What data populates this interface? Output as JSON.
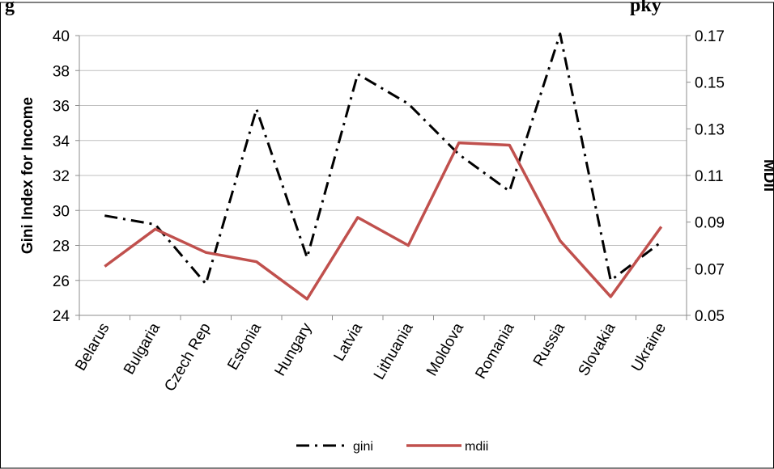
{
  "chart_data": {
    "type": "line",
    "title": "g",
    "title_tail": "pky",
    "categories": [
      "Belarus",
      "Bulgaria",
      "Czech Rep",
      "Estonia",
      "Hungary",
      "Latvia",
      "Lithuania",
      "Moldova",
      "Romania",
      "Russia",
      "Slovakia",
      "Ukraine"
    ],
    "ylabel": "Gini Index for Income",
    "y2label": "MDII",
    "ylim": [
      24,
      40
    ],
    "y2lim": [
      0.05,
      0.17
    ],
    "yticks": [
      "24",
      "26",
      "28",
      "30",
      "32",
      "34",
      "36",
      "38",
      "40"
    ],
    "y2ticks": [
      "0.05",
      "0.07",
      "0.09",
      "0.11",
      "0.13",
      "0.15",
      "0.17"
    ],
    "legend_position": "bottom",
    "grid": "horizontal",
    "series": [
      {
        "name": "gini",
        "axis": "left",
        "style": "dash-dot",
        "color": "#000000",
        "values": [
          29.7,
          29.2,
          25.8,
          35.8,
          27.3,
          37.8,
          36.1,
          33.2,
          31.1,
          40.1,
          26.0,
          28.2
        ]
      },
      {
        "name": "mdii",
        "axis": "right",
        "style": "solid",
        "color": "#c0504d",
        "values": [
          0.071,
          0.087,
          0.077,
          0.073,
          0.057,
          0.092,
          0.08,
          0.124,
          0.123,
          0.082,
          0.058,
          0.088
        ]
      }
    ]
  }
}
